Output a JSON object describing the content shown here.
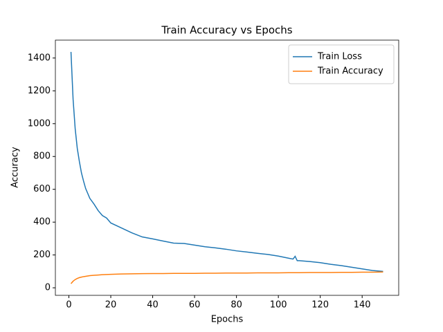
{
  "chart_data": {
    "type": "line",
    "title": "Train Accuracy vs Epochs",
    "x_label": "Epochs",
    "y_label": "Accuracy",
    "x": [
      1,
      2,
      3,
      4,
      5,
      6,
      7,
      8,
      9,
      10,
      12,
      14,
      16,
      18,
      20,
      25,
      30,
      35,
      40,
      45,
      50,
      55,
      60,
      65,
      70,
      75,
      80,
      85,
      90,
      95,
      100,
      105,
      107,
      108,
      109,
      110,
      115,
      120,
      125,
      130,
      135,
      140,
      145,
      150
    ],
    "series": [
      {
        "name": "Train Loss",
        "color": "#1f77b4",
        "values": [
          1437,
          1150,
          970,
          850,
          770,
          700,
          650,
          605,
          575,
          545,
          510,
          470,
          440,
          425,
          395,
          365,
          335,
          310,
          298,
          285,
          272,
          270,
          260,
          250,
          243,
          235,
          225,
          218,
          210,
          203,
          193,
          180,
          175,
          192,
          165,
          165,
          160,
          153,
          143,
          135,
          125,
          115,
          105,
          100
        ]
      },
      {
        "name": "Train Accuracy",
        "color": "#ff7f0e",
        "values": [
          25,
          40,
          50,
          57,
          62,
          65,
          68,
          70,
          72,
          74,
          76,
          78,
          80,
          81,
          82,
          84,
          85,
          86,
          87,
          87,
          88,
          88,
          88,
          89,
          89,
          90,
          90,
          90,
          91,
          91,
          91,
          92,
          92,
          92,
          92,
          92,
          93,
          93,
          93,
          94,
          94,
          95,
          95,
          96
        ]
      }
    ],
    "xlim": [
      -6.45,
      157.45
    ],
    "xticks": [
      0,
      20,
      40,
      60,
      80,
      100,
      120,
      140
    ],
    "ylim": [
      -46,
      1509
    ],
    "yticks": [
      0,
      200,
      400,
      600,
      800,
      1000,
      1200,
      1400
    ],
    "legend": "upper right",
    "grid": false
  }
}
